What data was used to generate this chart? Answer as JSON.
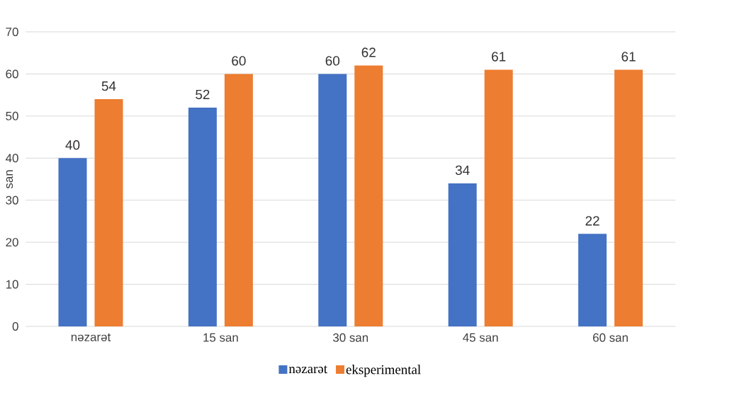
{
  "chart_data": {
    "type": "bar",
    "ylabel": "san",
    "categories": [
      "nəzarət",
      "15 san",
      "30 san",
      "45 san",
      "60 san"
    ],
    "series": [
      {
        "name": "nəzarət",
        "color": "#4472c4",
        "values": [
          40,
          52,
          60,
          34,
          22
        ]
      },
      {
        "name": "eksperimental",
        "color": "#ed7d31",
        "values": [
          54,
          60,
          62,
          61,
          61
        ]
      }
    ],
    "ylim": [
      0,
      70
    ],
    "yticks": [
      0,
      10,
      20,
      30,
      40,
      50,
      60,
      70
    ],
    "grid": "y",
    "legend": "bottom",
    "data_labels": true
  }
}
